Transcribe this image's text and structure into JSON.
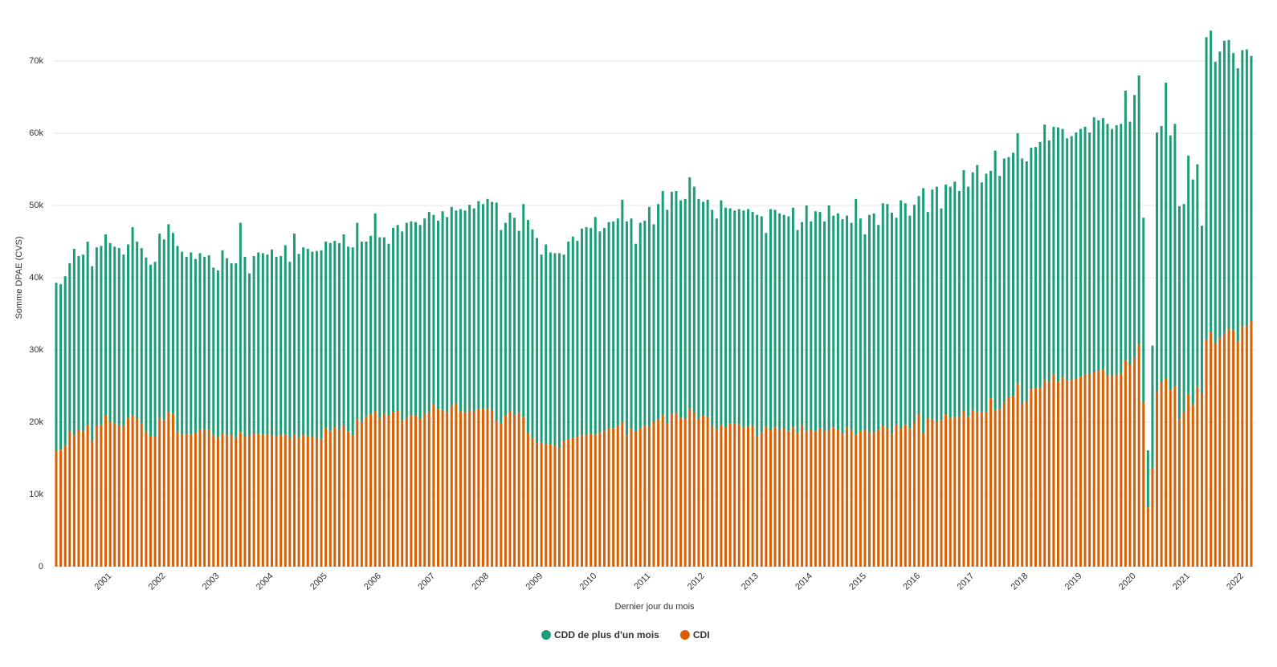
{
  "chart_data": {
    "type": "stacked-bar",
    "xlabel": "Dernier jour du mois",
    "ylabel": "Somme DPAE (CVS)",
    "ylim": [
      0,
      75000
    ],
    "yticks": [
      0,
      {
        "value": 10000,
        "label": "10k"
      },
      {
        "value": 20000,
        "label": "20k"
      },
      {
        "value": 30000,
        "label": "30k"
      },
      {
        "value": 40000,
        "label": "40k"
      },
      {
        "value": 50000,
        "label": "50k"
      },
      {
        "value": 60000,
        "label": "60k"
      },
      {
        "value": 70000,
        "label": "70k"
      }
    ],
    "grid": true,
    "legend": "bottom",
    "categories": [
      null,
      null,
      null,
      null,
      null,
      null,
      null,
      null,
      null,
      null,
      null,
      null,
      "2001",
      null,
      null,
      null,
      null,
      null,
      null,
      null,
      null,
      null,
      null,
      null,
      "2002",
      null,
      null,
      null,
      null,
      null,
      null,
      null,
      null,
      null,
      null,
      null,
      "2003",
      null,
      null,
      null,
      null,
      null,
      null,
      null,
      null,
      null,
      null,
      null,
      "2004",
      null,
      null,
      null,
      null,
      null,
      null,
      null,
      null,
      null,
      null,
      null,
      "2005",
      null,
      null,
      null,
      null,
      null,
      null,
      null,
      null,
      null,
      null,
      null,
      "2006",
      null,
      null,
      null,
      null,
      null,
      null,
      null,
      null,
      null,
      null,
      null,
      "2007",
      null,
      null,
      null,
      null,
      null,
      null,
      null,
      null,
      null,
      null,
      null,
      "2008",
      null,
      null,
      null,
      null,
      null,
      null,
      null,
      null,
      null,
      null,
      null,
      "2009",
      null,
      null,
      null,
      null,
      null,
      null,
      null,
      null,
      null,
      null,
      null,
      "2010",
      null,
      null,
      null,
      null,
      null,
      null,
      null,
      null,
      null,
      null,
      null,
      "2011",
      null,
      null,
      null,
      null,
      null,
      null,
      null,
      null,
      null,
      null,
      null,
      "2012",
      null,
      null,
      null,
      null,
      null,
      null,
      null,
      null,
      null,
      null,
      null,
      "2013",
      null,
      null,
      null,
      null,
      null,
      null,
      null,
      null,
      null,
      null,
      null,
      "2014",
      null,
      null,
      null,
      null,
      null,
      null,
      null,
      null,
      null,
      null,
      null,
      "2015",
      null,
      null,
      null,
      null,
      null,
      null,
      null,
      null,
      null,
      null,
      null,
      "2016",
      null,
      null,
      null,
      null,
      null,
      null,
      null,
      null,
      null,
      null,
      null,
      "2017",
      null,
      null,
      null,
      null,
      null,
      null,
      null,
      null,
      null,
      null,
      null,
      "2018",
      null,
      null,
      null,
      null,
      null,
      null,
      null,
      null,
      null,
      null,
      null,
      "2019",
      null,
      null,
      null,
      null,
      null,
      null,
      null,
      null,
      null,
      null,
      null,
      "2020",
      null,
      null,
      null,
      null,
      null,
      null,
      null,
      null,
      null,
      null,
      null,
      "2021",
      null,
      null,
      null,
      null,
      null,
      null,
      null,
      null,
      null,
      null,
      null,
      "2022",
      null,
      null
    ],
    "series": [
      {
        "name": "CDD de plus d'un mois",
        "color": "#1b9e77",
        "values": [
          23300,
          22900,
          23400,
          23300,
          25800,
          24000,
          24400,
          25400,
          24100,
          24700,
          24800,
          25000,
          24800,
          24500,
          24500,
          23700,
          24000,
          26000,
          24500,
          24300,
          24100,
          23700,
          24200,
          25500,
          25000,
          26000,
          25000,
          25800,
          25300,
          24500,
          25200,
          24100,
          24400,
          24000,
          24200,
          23200,
          23100,
          25400,
          24500,
          23800,
          24100,
          29000,
          24900,
          22500,
          24600,
          25100,
          25100,
          24900,
          25700,
          24900,
          24800,
          26200,
          24400,
          27800,
          25500,
          26000,
          25900,
          25600,
          25900,
          26100,
          25800,
          26000,
          25800,
          25800,
          26500,
          25600,
          26000,
          27200,
          24900,
          24200,
          24600,
          27400,
          25000,
          24400,
          23800,
          25500,
          25700,
          26100,
          27000,
          26800,
          26800,
          26800,
          27100,
          27700,
          26300,
          26100,
          27500,
          27100,
          27500,
          26700,
          28000,
          27900,
          28400,
          28100,
          28800,
          28400,
          29100,
          28900,
          30200,
          26700,
          26600,
          27500,
          27400,
          25200,
          29500,
          29500,
          28800,
          28400,
          26000,
          27600,
          26500,
          26600,
          27000,
          25800,
          27400,
          27900,
          27100,
          28600,
          28800,
          28500,
          30100,
          27800,
          28100,
          28600,
          28600,
          28700,
          30800,
          29600,
          29100,
          26000,
          28400,
          28300,
          30400,
          27400,
          29800,
          31000,
          29600,
          30700,
          30700,
          30100,
          30400,
          32100,
          31200,
          30400,
          29500,
          30100,
          29900,
          29300,
          31100,
          30400,
          29800,
          29500,
          29800,
          30000,
          30100,
          29600,
          30600,
          29900,
          26800,
          30500,
          30100,
          29900,
          29600,
          29700,
          30400,
          28000,
          28100,
          31200,
          28900,
          30400,
          29900,
          29100,
          31000,
          29300,
          30000,
          29700,
          29300,
          28700,
          32600,
          29500,
          27100,
          30100,
          30300,
          28400,
          30800,
          31100,
          30600,
          28700,
          31600,
          30600,
          29400,
          30100,
          30200,
          33900,
          28600,
          31800,
          32500,
          29300,
          31800,
          32000,
          32600,
          31200,
          33300,
          31800,
          32900,
          34200,
          31800,
          33000,
          31500,
          35900,
          32300,
          33800,
          33200,
          33700,
          34700,
          33900,
          33100,
          33400,
          33400,
          34000,
          35300,
          33400,
          34300,
          35200,
          34400,
          33500,
          33800,
          34100,
          34300,
          34300,
          33400,
          35200,
          34700,
          34800,
          34800,
          34200,
          34500,
          34500,
          37300,
          33600,
          36300,
          37300,
          25500,
          7900,
          17000,
          35800,
          35500,
          41000,
          35200,
          36300,
          29500,
          28800,
          33000,
          31200,
          30700,
          23200,
          41900,
          41700,
          38900,
          39700,
          40500,
          40000,
          38300,
          37800,
          38200,
          38300,
          36700
        ]
      },
      {
        "name": "CDI",
        "color": "#d95f02",
        "values": [
          16000,
          16200,
          16800,
          18700,
          18200,
          19000,
          18800,
          19600,
          17500,
          19500,
          19600,
          21000,
          20000,
          19800,
          19600,
          19500,
          20600,
          21000,
          20500,
          19800,
          18700,
          18100,
          18000,
          20600,
          20300,
          21400,
          21200,
          18600,
          18300,
          18400,
          18300,
          18500,
          19000,
          18900,
          18900,
          18200,
          17900,
          18400,
          18200,
          18200,
          17900,
          18600,
          18000,
          18100,
          18400,
          18400,
          18300,
          18300,
          18200,
          18000,
          18200,
          18300,
          17800,
          18300,
          17800,
          18200,
          18100,
          18000,
          17800,
          17700,
          19200,
          18800,
          19300,
          19000,
          19500,
          18700,
          18200,
          20400,
          20100,
          20800,
          21200,
          21500,
          20600,
          21200,
          20900,
          21400,
          21600,
          20300,
          20600,
          21000,
          20900,
          20500,
          21100,
          21400,
          22400,
          21800,
          21700,
          21300,
          22300,
          22600,
          21500,
          21400,
          21700,
          21500,
          21800,
          21800,
          21800,
          21600,
          20200,
          19900,
          21000,
          21500,
          20900,
          21300,
          20700,
          18500,
          17900,
          17100,
          17200,
          17000,
          17000,
          16800,
          16400,
          17400,
          17600,
          17800,
          18000,
          18200,
          18200,
          18400,
          18300,
          18600,
          18800,
          19100,
          19200,
          19500,
          20000,
          18200,
          19100,
          18700,
          19200,
          19600,
          19400,
          20000,
          20400,
          21000,
          19800,
          21200,
          21300,
          20600,
          20500,
          21800,
          21400,
          20500,
          21000,
          20700,
          19500,
          18900,
          19600,
          19300,
          19800,
          19800,
          19700,
          19300,
          19400,
          19500,
          18100,
          18600,
          19400,
          19000,
          19300,
          19000,
          19100,
          18800,
          19300,
          18600,
          19600,
          18800,
          18900,
          18800,
          19200,
          18700,
          19000,
          19300,
          18900,
          18400,
          19300,
          18900,
          18300,
          18700,
          18900,
          18600,
          18600,
          18900,
          19500,
          19100,
          18400,
          19600,
          19100,
          19700,
          19200,
          20000,
          21100,
          18500,
          20500,
          20400,
          20100,
          20300,
          21100,
          20600,
          20700,
          20800,
          21600,
          20800,
          21700,
          21400,
          21400,
          21400,
          23300,
          21700,
          21800,
          22700,
          23500,
          23600,
          25300,
          22600,
          23000,
          24600,
          24700,
          24800,
          25900,
          25600,
          26600,
          25600,
          26200,
          25800,
          25800,
          26000,
          26300,
          26600,
          26700,
          27000,
          27100,
          27300,
          26500,
          26400,
          26600,
          26800,
          28600,
          28000,
          29000,
          30700,
          22800,
          8200,
          13600,
          24300,
          25500,
          26000,
          24500,
          25000,
          20400,
          21400,
          23900,
          22400,
          25000,
          24000,
          31400,
          32500,
          31000,
          31600,
          32300,
          32900,
          32800,
          31200,
          33300,
          33300,
          34000
        ]
      }
    ]
  }
}
